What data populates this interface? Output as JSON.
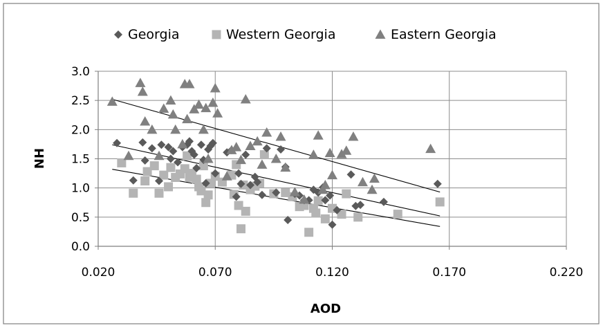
{
  "chart_data": {
    "type": "scatter",
    "title": "",
    "xlabel": "AOD",
    "ylabel": "NH",
    "xlim": [
      0.02,
      0.22
    ],
    "ylim": [
      0.0,
      3.0
    ],
    "x_ticks": [
      "0.020",
      "0.070",
      "0.120",
      "0.170",
      "0.220"
    ],
    "y_ticks": [
      "0.0",
      "0.5",
      "1.0",
      "1.5",
      "2.0",
      "2.5",
      "3.0"
    ],
    "grid": "vertical and horizontal major gridlines",
    "legend_position": "top",
    "series": [
      {
        "name": "Georgia",
        "marker": "diamond",
        "color": "#5a5a5a",
        "points": [
          [
            0.028,
            1.77
          ],
          [
            0.035,
            1.13
          ],
          [
            0.039,
            1.78
          ],
          [
            0.04,
            1.47
          ],
          [
            0.043,
            1.68
          ],
          [
            0.046,
            1.12
          ],
          [
            0.047,
            1.74
          ],
          [
            0.05,
            1.7
          ],
          [
            0.051,
            1.5
          ],
          [
            0.052,
            1.63
          ],
          [
            0.054,
            1.44
          ],
          [
            0.056,
            1.7
          ],
          [
            0.058,
            1.74
          ],
          [
            0.059,
            1.8
          ],
          [
            0.06,
            1.63
          ],
          [
            0.061,
            1.57
          ],
          [
            0.062,
            1.34
          ],
          [
            0.064,
            1.74
          ],
          [
            0.065,
            1.48
          ],
          [
            0.066,
            1.08
          ],
          [
            0.067,
            1.66
          ],
          [
            0.068,
            1.72
          ],
          [
            0.069,
            1.77
          ],
          [
            0.07,
            1.25
          ],
          [
            0.075,
            1.61
          ],
          [
            0.077,
            1.65
          ],
          [
            0.079,
            0.85
          ],
          [
            0.08,
            1.25
          ],
          [
            0.081,
            1.07
          ],
          [
            0.083,
            1.57
          ],
          [
            0.085,
            1.05
          ],
          [
            0.087,
            1.19
          ],
          [
            0.088,
            1.1
          ],
          [
            0.09,
            0.88
          ],
          [
            0.092,
            1.68
          ],
          [
            0.096,
            0.92
          ],
          [
            0.098,
            1.66
          ],
          [
            0.1,
            1.36
          ],
          [
            0.101,
            0.45
          ],
          [
            0.104,
            0.9
          ],
          [
            0.106,
            0.87
          ],
          [
            0.108,
            0.79
          ],
          [
            0.11,
            0.79
          ],
          [
            0.112,
            0.97
          ],
          [
            0.114,
            0.92
          ],
          [
            0.116,
            1.01
          ],
          [
            0.117,
            0.79
          ],
          [
            0.119,
            0.87
          ],
          [
            0.12,
            0.37
          ],
          [
            0.122,
            0.62
          ],
          [
            0.128,
            1.23
          ],
          [
            0.13,
            0.69
          ],
          [
            0.132,
            0.71
          ],
          [
            0.142,
            0.76
          ],
          [
            0.165,
            1.07
          ]
        ]
      },
      {
        "name": "Western Georgia",
        "marker": "square",
        "color": "#b4b4b4",
        "points": [
          [
            0.03,
            1.43
          ],
          [
            0.035,
            0.91
          ],
          [
            0.04,
            1.12
          ],
          [
            0.041,
            1.28
          ],
          [
            0.044,
            1.38
          ],
          [
            0.046,
            0.91
          ],
          [
            0.048,
            1.22
          ],
          [
            0.05,
            1.02
          ],
          [
            0.051,
            1.35
          ],
          [
            0.053,
            1.18
          ],
          [
            0.055,
            1.24
          ],
          [
            0.057,
            1.33
          ],
          [
            0.058,
            1.55
          ],
          [
            0.059,
            1.18
          ],
          [
            0.06,
            1.25
          ],
          [
            0.062,
            1.15
          ],
          [
            0.063,
            1.02
          ],
          [
            0.064,
            0.95
          ],
          [
            0.065,
            1.38
          ],
          [
            0.066,
            0.75
          ],
          [
            0.067,
            0.88
          ],
          [
            0.068,
            1.08
          ],
          [
            0.07,
            1.2
          ],
          [
            0.073,
            1.1
          ],
          [
            0.077,
            1.22
          ],
          [
            0.078,
            0.89
          ],
          [
            0.079,
            1.4
          ],
          [
            0.08,
            0.7
          ],
          [
            0.081,
            0.3
          ],
          [
            0.082,
            1.05
          ],
          [
            0.083,
            0.6
          ],
          [
            0.085,
            0.97
          ],
          [
            0.087,
            1.03
          ],
          [
            0.089,
            1.08
          ],
          [
            0.091,
            1.57
          ],
          [
            0.095,
            0.9
          ],
          [
            0.1,
            0.92
          ],
          [
            0.103,
            0.85
          ],
          [
            0.106,
            0.68
          ],
          [
            0.108,
            0.7
          ],
          [
            0.11,
            0.24
          ],
          [
            0.112,
            0.65
          ],
          [
            0.113,
            0.57
          ],
          [
            0.114,
            0.78
          ],
          [
            0.117,
            0.47
          ],
          [
            0.12,
            0.65
          ],
          [
            0.124,
            0.55
          ],
          [
            0.126,
            0.9
          ],
          [
            0.131,
            0.5
          ],
          [
            0.148,
            0.55
          ],
          [
            0.166,
            0.76
          ]
        ]
      },
      {
        "name": "Eastern Georgia",
        "marker": "triangle",
        "color": "#808080",
        "points": [
          [
            0.026,
            2.48
          ],
          [
            0.033,
            1.55
          ],
          [
            0.038,
            2.8
          ],
          [
            0.039,
            2.65
          ],
          [
            0.04,
            2.14
          ],
          [
            0.043,
            2.0
          ],
          [
            0.046,
            1.55
          ],
          [
            0.048,
            2.36
          ],
          [
            0.051,
            2.5
          ],
          [
            0.052,
            2.26
          ],
          [
            0.053,
            2.0
          ],
          [
            0.056,
            1.75
          ],
          [
            0.057,
            2.78
          ],
          [
            0.058,
            2.18
          ],
          [
            0.059,
            2.78
          ],
          [
            0.061,
            2.35
          ],
          [
            0.063,
            2.43
          ],
          [
            0.065,
            2.0
          ],
          [
            0.066,
            2.37
          ],
          [
            0.067,
            1.5
          ],
          [
            0.069,
            2.46
          ],
          [
            0.07,
            2.71
          ],
          [
            0.071,
            2.28
          ],
          [
            0.075,
            1.2
          ],
          [
            0.077,
            1.65
          ],
          [
            0.079,
            1.7
          ],
          [
            0.081,
            1.48
          ],
          [
            0.083,
            2.52
          ],
          [
            0.085,
            1.72
          ],
          [
            0.088,
            1.8
          ],
          [
            0.09,
            1.4
          ],
          [
            0.092,
            1.95
          ],
          [
            0.096,
            1.5
          ],
          [
            0.098,
            1.88
          ],
          [
            0.1,
            1.35
          ],
          [
            0.104,
            0.93
          ],
          [
            0.108,
            0.8
          ],
          [
            0.112,
            1.57
          ],
          [
            0.114,
            1.9
          ],
          [
            0.116,
            0.97
          ],
          [
            0.117,
            1.05
          ],
          [
            0.119,
            1.6
          ],
          [
            0.12,
            1.22
          ],
          [
            0.124,
            1.58
          ],
          [
            0.126,
            1.64
          ],
          [
            0.129,
            1.88
          ],
          [
            0.133,
            1.1
          ],
          [
            0.137,
            0.97
          ],
          [
            0.138,
            1.16
          ],
          [
            0.162,
            1.67
          ]
        ]
      }
    ],
    "trendlines": [
      {
        "from": [
          0.026,
          2.52
        ],
        "to": [
          0.166,
          0.93
        ]
      },
      {
        "from": [
          0.026,
          1.74
        ],
        "to": [
          0.166,
          0.52
        ]
      },
      {
        "from": [
          0.026,
          1.32
        ],
        "to": [
          0.166,
          0.34
        ]
      }
    ]
  }
}
